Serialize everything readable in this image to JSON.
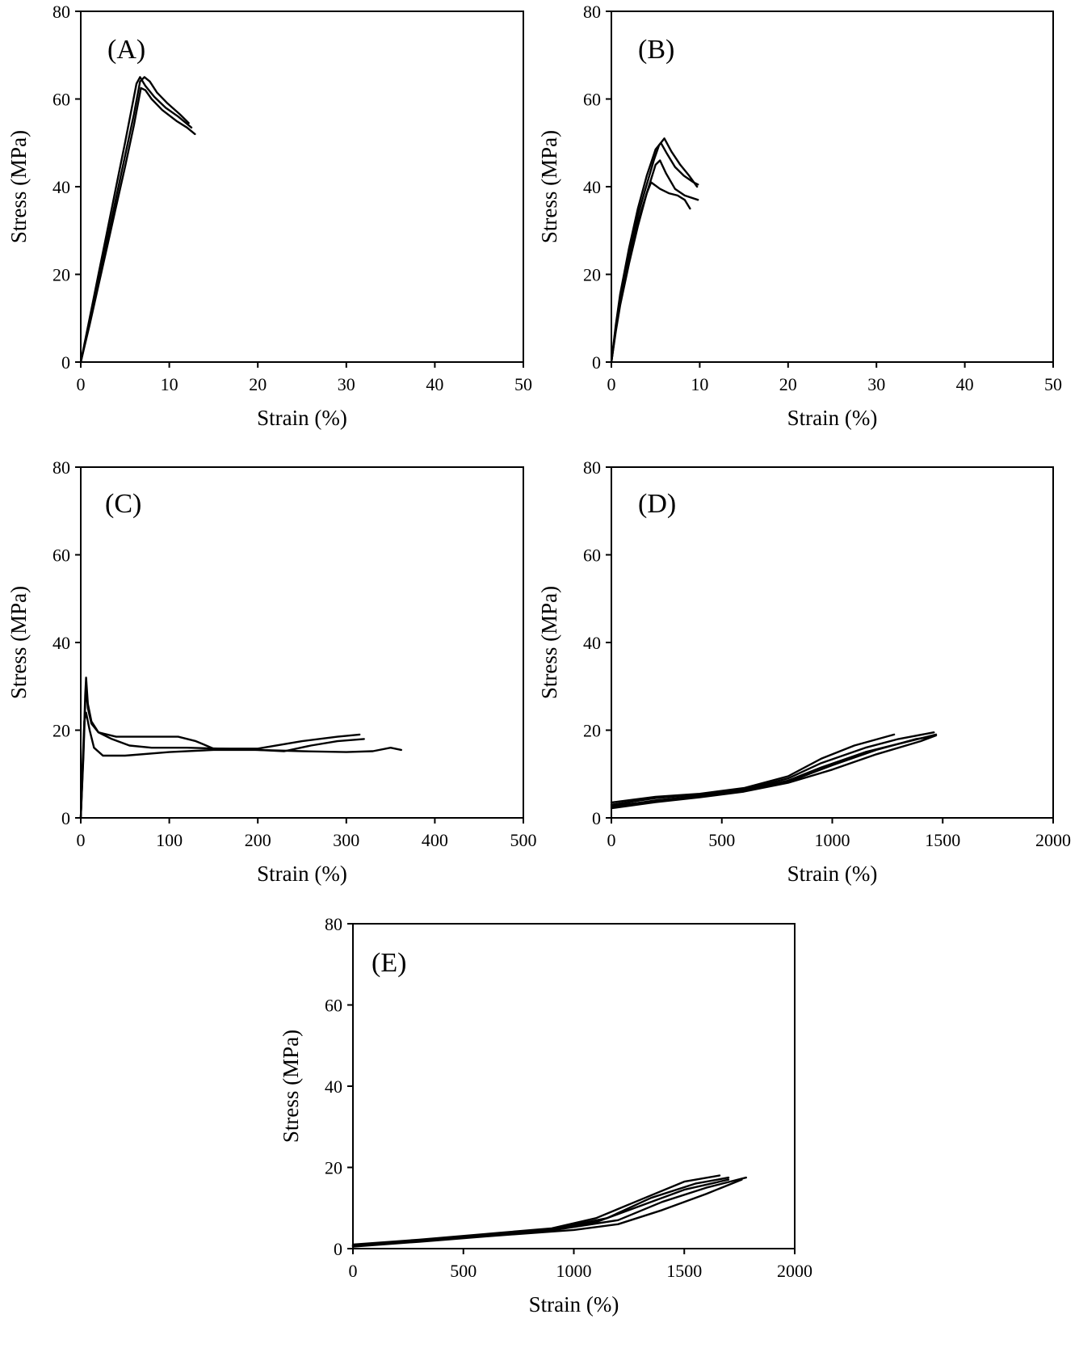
{
  "chart_data": [
    {
      "panel": "(A)",
      "type": "line",
      "xlabel": "Strain (%)",
      "ylabel": "Stress (MPa)",
      "xlim": [
        0,
        50
      ],
      "ylim": [
        0,
        80
      ],
      "xticks": [
        0,
        10,
        20,
        30,
        40,
        50
      ],
      "yticks": [
        0,
        20,
        40,
        60,
        80
      ],
      "grid": false,
      "series": [
        {
          "points": [
            [
              0,
              0
            ],
            [
              1,
              9
            ],
            [
              2,
              18.5
            ],
            [
              3,
              28
            ],
            [
              4,
              37.5
            ],
            [
              5,
              47
            ],
            [
              6,
              56.5
            ],
            [
              6.7,
              64
            ],
            [
              7.2,
              65
            ],
            [
              7.8,
              64
            ],
            [
              8.6,
              61.5
            ],
            [
              9.8,
              59
            ],
            [
              11.2,
              56.5
            ],
            [
              12.2,
              54.5
            ]
          ]
        },
        {
          "points": [
            [
              0,
              0
            ],
            [
              1,
              10
            ],
            [
              2,
              20
            ],
            [
              3,
              30
            ],
            [
              4,
              40
            ],
            [
              5,
              50
            ],
            [
              6.3,
              63.5
            ],
            [
              6.7,
              65
            ],
            [
              7.3,
              63
            ],
            [
              8.3,
              60.5
            ],
            [
              9.6,
              58
            ],
            [
              11,
              56
            ],
            [
              12.5,
              53.5
            ]
          ]
        },
        {
          "points": [
            [
              0,
              0
            ],
            [
              1,
              8.5
            ],
            [
              2,
              17.5
            ],
            [
              3,
              26.5
            ],
            [
              4,
              35.5
            ],
            [
              5,
              44.5
            ],
            [
              6,
              54
            ],
            [
              6.8,
              62.5
            ],
            [
              7.3,
              62
            ],
            [
              8,
              60
            ],
            [
              9.2,
              57.5
            ],
            [
              10.8,
              55
            ],
            [
              12,
              53.5
            ],
            [
              12.9,
              52
            ]
          ]
        }
      ]
    },
    {
      "panel": "(B)",
      "type": "line",
      "xlabel": "Strain (%)",
      "ylabel": "Stress (MPa)",
      "xlim": [
        0,
        50
      ],
      "ylim": [
        0,
        80
      ],
      "xticks": [
        0,
        10,
        20,
        30,
        40,
        50
      ],
      "yticks": [
        0,
        20,
        40,
        60,
        80
      ],
      "grid": false,
      "series": [
        {
          "points": [
            [
              0,
              0
            ],
            [
              0.5,
              8
            ],
            [
              1,
              14.5
            ],
            [
              2,
              25
            ],
            [
              3,
              33.5
            ],
            [
              4,
              40.5
            ],
            [
              4.8,
              46
            ],
            [
              5.4,
              49.5
            ],
            [
              6,
              51
            ],
            [
              6.8,
              48
            ],
            [
              7.8,
              45
            ],
            [
              8.8,
              42.5
            ],
            [
              9.7,
              40
            ]
          ]
        },
        {
          "points": [
            [
              0,
              0
            ],
            [
              0.5,
              8.5
            ],
            [
              1,
              15.5
            ],
            [
              2,
              26
            ],
            [
              3,
              35
            ],
            [
              4,
              42.5
            ],
            [
              5,
              48.5
            ],
            [
              5.6,
              50
            ],
            [
              6.3,
              47.5
            ],
            [
              7.2,
              44.5
            ],
            [
              8.2,
              42.5
            ],
            [
              9.3,
              41
            ],
            [
              9.8,
              40.5
            ]
          ]
        },
        {
          "points": [
            [
              0,
              0
            ],
            [
              0.5,
              7
            ],
            [
              1,
              13
            ],
            [
              2,
              22.5
            ],
            [
              3,
              31
            ],
            [
              4,
              38.5
            ],
            [
              5,
              45
            ],
            [
              5.5,
              46
            ],
            [
              6.2,
              43
            ],
            [
              7.2,
              39.5
            ],
            [
              8.3,
              38
            ],
            [
              9.8,
              37
            ]
          ]
        },
        {
          "points": [
            [
              0,
              0
            ],
            [
              0.5,
              7.5
            ],
            [
              1,
              13.5
            ],
            [
              2,
              23.5
            ],
            [
              3,
              32
            ],
            [
              4,
              38.5
            ],
            [
              4.5,
              41
            ],
            [
              5.5,
              39.5
            ],
            [
              6.5,
              38.5
            ],
            [
              7.5,
              38
            ],
            [
              8.3,
              37
            ],
            [
              8.9,
              35
            ]
          ]
        }
      ]
    },
    {
      "panel": "(C)",
      "type": "line",
      "xlabel": "Strain (%)",
      "ylabel": "Stress (MPa)",
      "xlim": [
        0,
        500
      ],
      "ylim": [
        0,
        80
      ],
      "xticks": [
        0,
        100,
        200,
        300,
        400,
        500
      ],
      "yticks": [
        0,
        20,
        40,
        60,
        80
      ],
      "grid": false,
      "series": [
        {
          "points": [
            [
              0,
              0
            ],
            [
              3,
              15
            ],
            [
              5,
              28
            ],
            [
              6,
              32
            ],
            [
              8,
              26
            ],
            [
              12,
              22
            ],
            [
              20,
              19.5
            ],
            [
              40,
              18.5
            ],
            [
              80,
              18.5
            ],
            [
              110,
              18.5
            ],
            [
              130,
              17.5
            ],
            [
              150,
              15.8
            ],
            [
              200,
              15.8
            ],
            [
              250,
              17.5
            ],
            [
              290,
              18.5
            ],
            [
              315,
              19
            ]
          ]
        },
        {
          "points": [
            [
              0,
              0
            ],
            [
              3,
              14
            ],
            [
              5,
              26
            ],
            [
              6,
              30
            ],
            [
              8,
              25
            ],
            [
              12,
              21.5
            ],
            [
              20,
              19.5
            ],
            [
              35,
              18
            ],
            [
              55,
              16.5
            ],
            [
              80,
              16
            ],
            [
              120,
              16
            ],
            [
              160,
              15.8
            ],
            [
              200,
              15.5
            ],
            [
              230,
              15.2
            ],
            [
              260,
              16.5
            ],
            [
              290,
              17.5
            ],
            [
              320,
              18
            ]
          ]
        },
        {
          "points": [
            [
              0,
              0
            ],
            [
              2,
              12
            ],
            [
              4,
              22
            ],
            [
              6,
              24
            ],
            [
              10,
              20
            ],
            [
              15,
              16
            ],
            [
              25,
              14.2
            ],
            [
              50,
              14.2
            ],
            [
              100,
              15
            ],
            [
              150,
              15.5
            ],
            [
              200,
              15.5
            ],
            [
              250,
              15.2
            ],
            [
              300,
              15
            ],
            [
              330,
              15.2
            ],
            [
              350,
              16
            ],
            [
              362,
              15.5
            ]
          ]
        }
      ]
    },
    {
      "panel": "(D)",
      "type": "line",
      "xlabel": "Strain (%)",
      "ylabel": "Stress (MPa)",
      "xlim": [
        0,
        2000
      ],
      "ylim": [
        0,
        80
      ],
      "xticks": [
        0,
        500,
        1000,
        1500,
        2000
      ],
      "yticks": [
        0,
        20,
        40,
        60,
        80
      ],
      "grid": false,
      "series": [
        {
          "points": [
            [
              0,
              3.5
            ],
            [
              200,
              4.8
            ],
            [
              400,
              5.5
            ],
            [
              600,
              6.8
            ],
            [
              800,
              9.5
            ],
            [
              950,
              13.5
            ],
            [
              1100,
              16.5
            ],
            [
              1280,
              19
            ]
          ]
        },
        {
          "points": [
            [
              0,
              3
            ],
            [
              200,
              4.5
            ],
            [
              400,
              5.3
            ],
            [
              600,
              6.5
            ],
            [
              800,
              9
            ],
            [
              950,
              12.5
            ],
            [
              1150,
              16
            ],
            [
              1300,
              18
            ],
            [
              1460,
              19.5
            ]
          ]
        },
        {
          "points": [
            [
              0,
              2.5
            ],
            [
              200,
              4
            ],
            [
              400,
              5
            ],
            [
              600,
              6.3
            ],
            [
              800,
              8.5
            ],
            [
              950,
              11.5
            ],
            [
              1150,
              15
            ],
            [
              1350,
              17.5
            ],
            [
              1470,
              19
            ]
          ]
        },
        {
          "points": [
            [
              0,
              2.8
            ],
            [
              200,
              3.8
            ],
            [
              400,
              4.9
            ],
            [
              600,
              6.2
            ],
            [
              800,
              8.2
            ],
            [
              1000,
              12
            ],
            [
              1200,
              15.5
            ],
            [
              1380,
              18
            ],
            [
              1450,
              18.5
            ]
          ]
        },
        {
          "points": [
            [
              0,
              2.2
            ],
            [
              200,
              3.6
            ],
            [
              400,
              4.7
            ],
            [
              600,
              6
            ],
            [
              800,
              8
            ],
            [
              1000,
              11
            ],
            [
              1200,
              14.5
            ],
            [
              1400,
              17.5
            ],
            [
              1470,
              18.8
            ]
          ]
        }
      ]
    },
    {
      "panel": "(E)",
      "type": "line",
      "xlabel": "Strain (%)",
      "ylabel": "Stress (MPa)",
      "xlim": [
        0,
        2000
      ],
      "ylim": [
        0,
        80
      ],
      "xticks": [
        0,
        500,
        1000,
        1500,
        2000
      ],
      "yticks": [
        0,
        20,
        40,
        60,
        80
      ],
      "grid": false,
      "series": [
        {
          "points": [
            [
              0,
              1
            ],
            [
              300,
              2.2
            ],
            [
              600,
              3.6
            ],
            [
              900,
              5
            ],
            [
              1100,
              7.5
            ],
            [
              1300,
              12
            ],
            [
              1500,
              16.5
            ],
            [
              1660,
              18
            ]
          ]
        },
        {
          "points": [
            [
              0,
              0.8
            ],
            [
              300,
              2
            ],
            [
              600,
              3.4
            ],
            [
              900,
              4.8
            ],
            [
              1150,
              7.5
            ],
            [
              1350,
              12.5
            ],
            [
              1550,
              16
            ],
            [
              1700,
              17.5
            ]
          ]
        },
        {
          "points": [
            [
              0,
              0.7
            ],
            [
              300,
              1.9
            ],
            [
              600,
              3.2
            ],
            [
              900,
              4.6
            ],
            [
              1100,
              6.5
            ],
            [
              1300,
              10.5
            ],
            [
              1500,
              14.5
            ],
            [
              1700,
              17
            ]
          ]
        },
        {
          "points": [
            [
              0,
              0.6
            ],
            [
              300,
              1.8
            ],
            [
              600,
              3.1
            ],
            [
              900,
              4.5
            ],
            [
              1200,
              7
            ],
            [
              1400,
              11.5
            ],
            [
              1600,
              15
            ],
            [
              1780,
              17.5
            ]
          ]
        },
        {
          "points": [
            [
              0,
              0.5
            ],
            [
              300,
              1.7
            ],
            [
              600,
              3
            ],
            [
              1000,
              4.6
            ],
            [
              1200,
              6
            ],
            [
              1400,
              9.5
            ],
            [
              1600,
              13.5
            ],
            [
              1760,
              17
            ]
          ]
        }
      ]
    }
  ]
}
